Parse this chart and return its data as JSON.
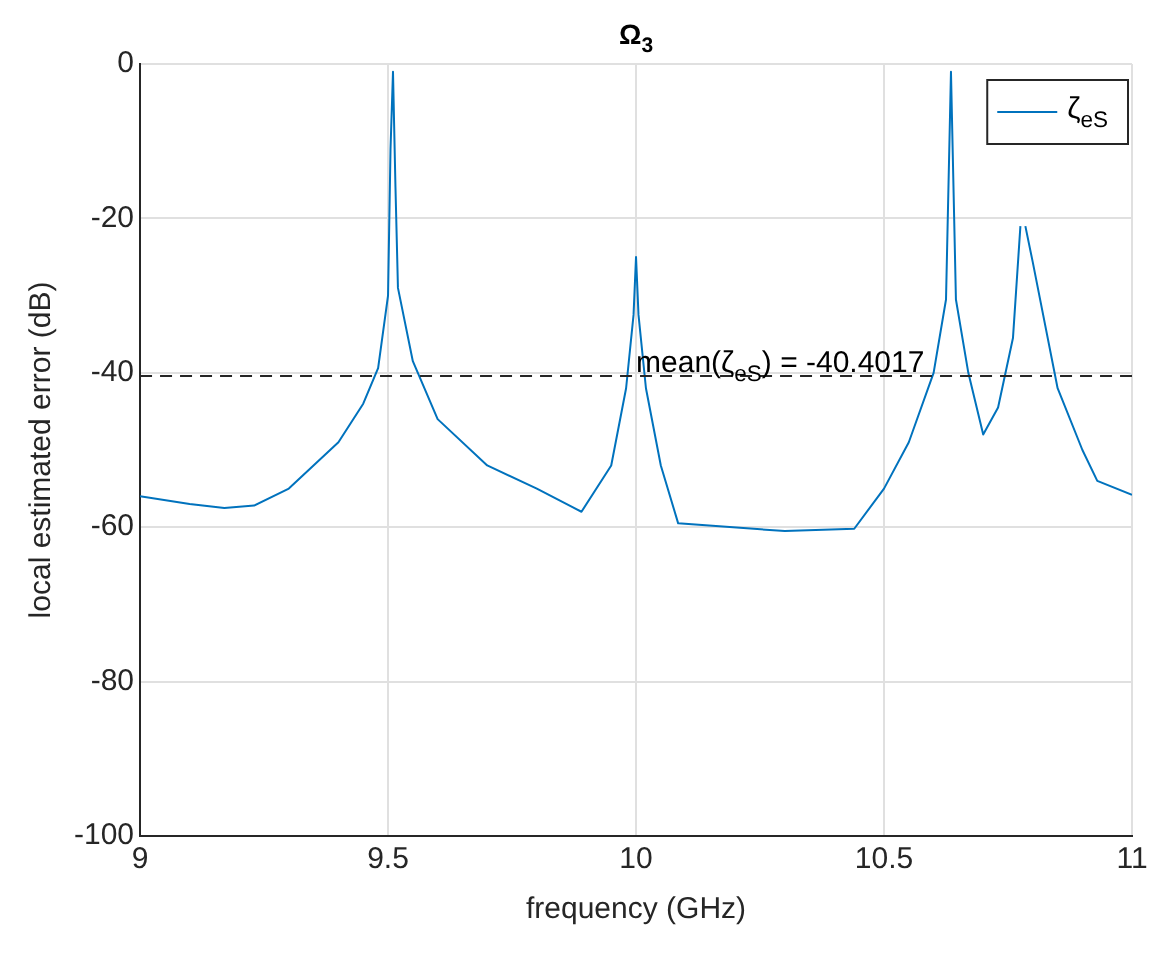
{
  "chart_data": {
    "type": "line",
    "title": "Ω$_{3}$",
    "xlabel": "frequency (GHz)",
    "ylabel": "local estimated error (dB)",
    "x": [
      9.0,
      9.1,
      9.17,
      9.23,
      9.3,
      9.4,
      9.45,
      9.48,
      9.5,
      9.505,
      9.51,
      9.515,
      9.52,
      9.55,
      9.6,
      9.7,
      9.8,
      9.89,
      9.95,
      9.98,
      9.995,
      10.0,
      10.005,
      10.02,
      10.05,
      10.085,
      10.3,
      10.44,
      10.5,
      10.55,
      10.6,
      10.625,
      10.635,
      10.645,
      10.67,
      10.7,
      10.73,
      10.76,
      10.775,
      10.78,
      10.785,
      10.8,
      10.85,
      10.9,
      10.93,
      11.0
    ],
    "series": [
      {
        "name": "ζ$_{eS}$",
        "color": "#0072bd",
        "values": [
          -56,
          -57,
          -57.5,
          -57.2,
          -55,
          -49,
          -44,
          -39.4,
          -30,
          -11,
          -1,
          -16,
          -29,
          -38.5,
          -46,
          -52,
          -55,
          -58,
          -52,
          -42,
          -32.5,
          -25,
          -32.5,
          -42,
          -52,
          -59.5,
          -60.5,
          -60.2,
          -55,
          -49,
          -40,
          -30.5,
          -1,
          -30.5,
          -40,
          -48,
          -44.5,
          -35.5,
          -21,
          null,
          -21,
          -25.7,
          -42,
          -50,
          -54,
          -55.8
        ]
      }
    ],
    "ref_lines": [
      {
        "axis": "y",
        "value": -40.4017,
        "label": "mean(ζ$_{eS}$) = -40.4017",
        "color": "#262626",
        "line_style": "dashed"
      }
    ],
    "xlim": [
      9,
      11
    ],
    "xticks": [
      9,
      9.5,
      10,
      10.5,
      11
    ],
    "ylim": [
      -100,
      0
    ],
    "yticks": [
      -100,
      -80,
      -60,
      -40,
      -20,
      0
    ],
    "grid": true,
    "legend": "top right",
    "marker": "none",
    "line_style": "solid"
  }
}
